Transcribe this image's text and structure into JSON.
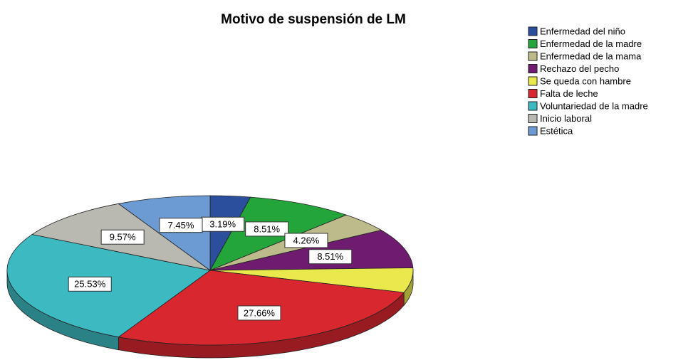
{
  "chart_data": {
    "type": "pie3d",
    "title": "Motivo de suspensión de LM",
    "categories": [
      "Enfermedad del niño",
      "Enfermedad de la madre",
      "Enfermedad de la mama",
      "Rechazo del pecho",
      "Se queda con hambre",
      "Falta de leche",
      "Voluntariedad de la madre",
      "Inicio laboral",
      "Estética"
    ],
    "values": [
      3.19,
      8.51,
      4.26,
      8.51,
      5.32,
      27.66,
      25.53,
      9.57,
      7.45
    ],
    "value_labels": [
      "3.19%",
      "8.51%",
      "4.26%",
      "8.51%",
      null,
      "27.66%",
      "25.53%",
      "9.57%",
      "7.45%"
    ],
    "colors": [
      "#2b4f9c",
      "#23a53b",
      "#bdba8c",
      "#6f1c70",
      "#e9e84c",
      "#d9272f",
      "#3cb9c1",
      "#b9b9b1",
      "#6b9bd2"
    ],
    "legend": "top-right"
  }
}
